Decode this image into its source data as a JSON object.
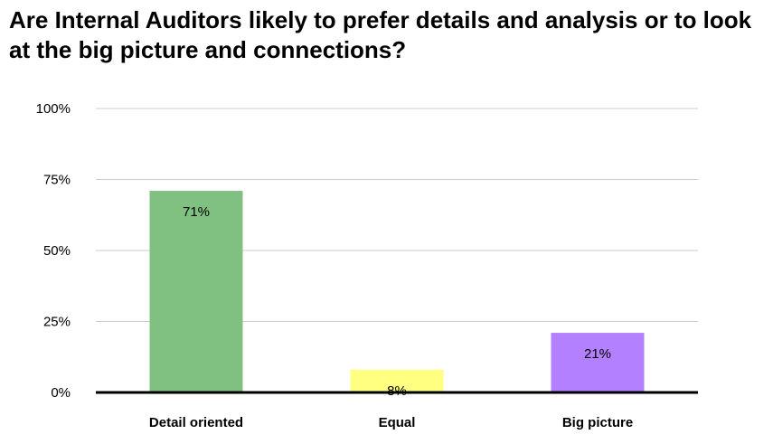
{
  "chart_data": {
    "type": "bar",
    "title": "Are Internal Auditors likely to prefer details and analysis or to look at the big picture and connections?",
    "xlabel": "",
    "ylabel": "",
    "categories": [
      "Detail oriented",
      "Equal",
      "Big picture"
    ],
    "values": [
      71,
      8,
      21
    ],
    "data_labels": [
      "71%",
      "8%",
      "21%"
    ],
    "bar_colors": [
      "#80c080",
      "#ffff80",
      "#b380ff"
    ],
    "ylim": [
      0,
      100
    ],
    "y_ticks": [
      0,
      25,
      50,
      75,
      100
    ],
    "y_tick_labels": [
      "0%",
      "25%",
      "50%",
      "75%",
      "100%"
    ],
    "grid": true,
    "legend": "none"
  }
}
